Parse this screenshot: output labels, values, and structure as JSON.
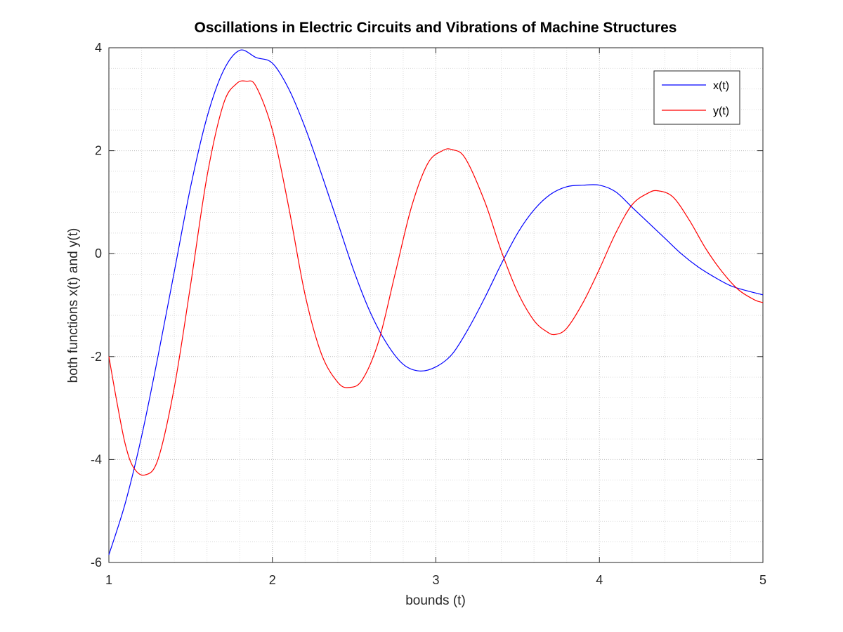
{
  "chart_data": {
    "type": "line",
    "title": "Oscillations in Electric Circuits and Vibrations of Machine Structures",
    "xlabel": "bounds (t)",
    "ylabel": "both functions x(t) and y(t)",
    "xlim": [
      1,
      5
    ],
    "ylim": [
      -6,
      4
    ],
    "x_ticks": [
      1,
      2,
      3,
      4,
      5
    ],
    "x_tick_labels": [
      "1",
      "2",
      "3",
      "4",
      "5"
    ],
    "y_ticks": [
      -6,
      -4,
      -2,
      0,
      2,
      4
    ],
    "y_tick_labels": [
      "-6",
      "-4",
      "-2",
      "0",
      "2",
      "4"
    ],
    "grid": true,
    "minor_grid": true,
    "legend_position": "top-right",
    "series": [
      {
        "name": "x(t)",
        "color": "#0000ff",
        "x": [
          1.0,
          1.1,
          1.2,
          1.3,
          1.4,
          1.5,
          1.6,
          1.7,
          1.8,
          1.9,
          2.0,
          2.1,
          2.2,
          2.3,
          2.4,
          2.5,
          2.6,
          2.7,
          2.8,
          2.9,
          3.0,
          3.1,
          3.2,
          3.3,
          3.4,
          3.5,
          3.6,
          3.7,
          3.8,
          3.9,
          4.0,
          4.1,
          4.2,
          4.3,
          4.4,
          4.5,
          4.6,
          4.7,
          4.8,
          4.9,
          5.0
        ],
        "y": [
          -5.85,
          -4.85,
          -3.55,
          -2.0,
          -0.35,
          1.3,
          2.65,
          3.55,
          3.95,
          3.81,
          3.7,
          3.2,
          2.45,
          1.55,
          0.6,
          -0.35,
          -1.15,
          -1.75,
          -2.15,
          -2.28,
          -2.2,
          -1.95,
          -1.45,
          -0.85,
          -0.2,
          0.4,
          0.85,
          1.15,
          1.3,
          1.33,
          1.33,
          1.2,
          0.9,
          0.6,
          0.3,
          0.0,
          -0.25,
          -0.45,
          -0.62,
          -0.72,
          -0.8
        ]
      },
      {
        "name": "y(t)",
        "color": "#ff0000",
        "x": [
          1.0,
          1.05,
          1.1,
          1.15,
          1.22,
          1.3,
          1.4,
          1.5,
          1.6,
          1.7,
          1.78,
          1.84,
          1.9,
          2.0,
          2.1,
          2.2,
          2.3,
          2.4,
          2.47,
          2.55,
          2.65,
          2.75,
          2.85,
          2.95,
          3.04,
          3.1,
          3.18,
          3.3,
          3.4,
          3.5,
          3.6,
          3.68,
          3.73,
          3.8,
          3.9,
          4.0,
          4.1,
          4.2,
          4.3,
          4.36,
          4.45,
          4.55,
          4.65,
          4.75,
          4.85,
          4.95,
          5.0
        ],
        "y": [
          -2.0,
          -2.9,
          -3.7,
          -4.15,
          -4.3,
          -4.0,
          -2.6,
          -0.6,
          1.5,
          2.9,
          3.3,
          3.35,
          3.25,
          2.4,
          0.9,
          -0.8,
          -1.95,
          -2.5,
          -2.6,
          -2.45,
          -1.7,
          -0.4,
          0.9,
          1.75,
          2.0,
          2.02,
          1.85,
          1.0,
          0.05,
          -0.75,
          -1.3,
          -1.52,
          -1.57,
          -1.45,
          -0.95,
          -0.3,
          0.4,
          0.95,
          1.18,
          1.22,
          1.1,
          0.65,
          0.1,
          -0.35,
          -0.7,
          -0.9,
          -0.95
        ]
      }
    ]
  }
}
